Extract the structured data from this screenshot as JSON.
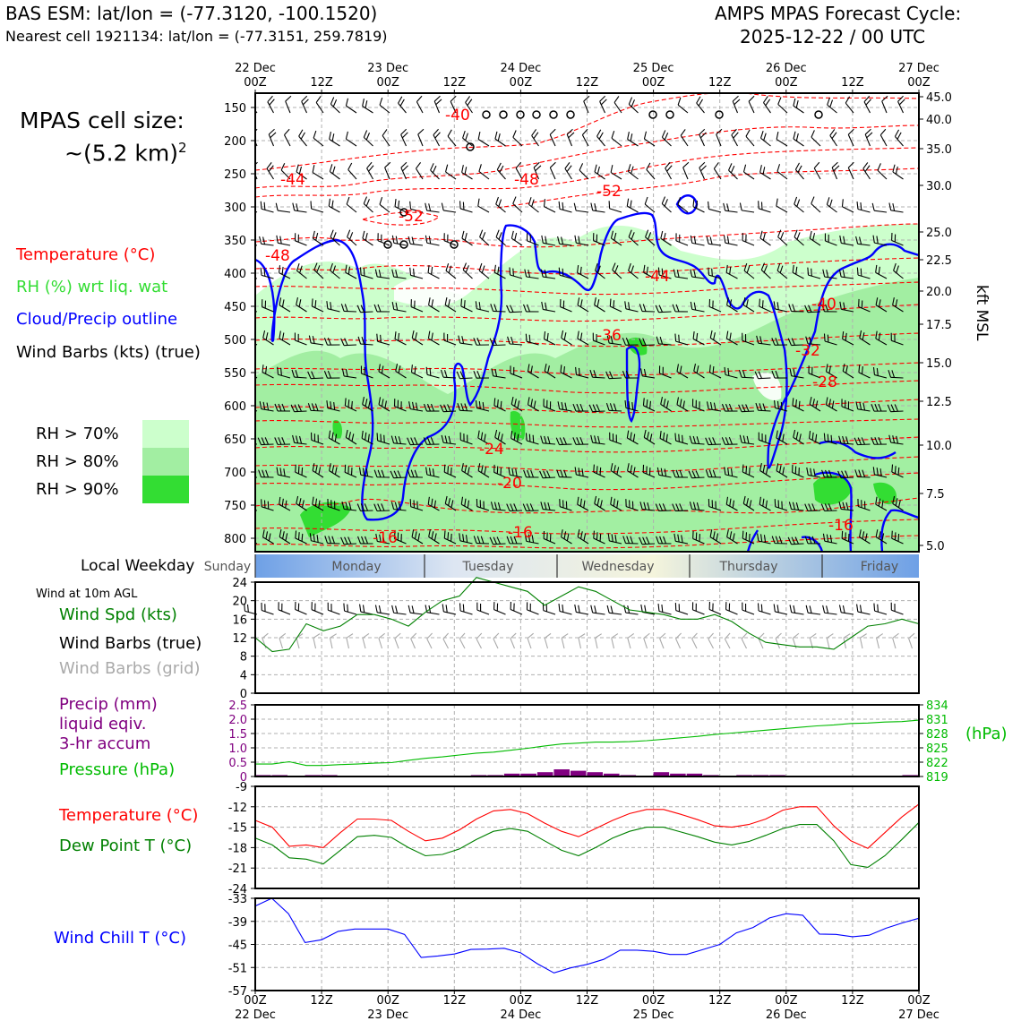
{
  "header": {
    "title_left": "BAS ESM: lat/lon = (-77.3120, -100.1520)",
    "subtitle_left": "Nearest cell 1921134: lat/lon = (-77.3151, 259.7819)",
    "title_right_line1": "AMPS MPAS Forecast Cycle:",
    "title_right_line2": "2025-12-22 / 00 UTC"
  },
  "side": {
    "cell_size_line1": "MPAS cell size:",
    "cell_size_line2": "~(5.2 km)",
    "cell_size_exp": "2",
    "legend_temperature": "Temperature (°C)",
    "legend_rh": "RH (%) wrt liq. wat",
    "legend_cloud": "Cloud/Precip outline",
    "legend_wind": "Wind Barbs (kts) (true)",
    "rh70": "RH > 70%",
    "rh80": "RH > 80%",
    "rh90": "RH > 90%",
    "weekday_label": "Local Weekday",
    "wind10m_label": "Wind at 10m AGL",
    "wind_spd_label": "Wind Spd (kts)",
    "wind_barbs_true_label": "Wind Barbs (true)",
    "wind_barbs_grid_label": "Wind Barbs (grid)",
    "precip_line1": "Precip (mm)",
    "precip_line2": "liquid eqiv.",
    "precip_line3": "3-hr accum",
    "pressure_label": "Pressure (hPa)",
    "hpa_unit": "(hPa)",
    "temp_label": "Temperature (°C)",
    "dew_label": "Dew Point T (°C)",
    "windchill_label": "Wind Chill T (°C)",
    "kft_label": "kft MSL"
  },
  "colors": {
    "temperature": "#ff0000",
    "rh_text": "#33dd33",
    "cloud": "#0000ff",
    "dew": "#008000",
    "precip": "#800080",
    "pressure": "#00bb00",
    "rh70": "#ccffcc",
    "rh80": "#a2eea2",
    "rh90": "#33dd33"
  },
  "chart_data": [
    {
      "type": "contour",
      "name": "cross-section",
      "time_ticks_top": [
        {
          "line1": "22 Dec",
          "line2": "00Z"
        },
        {
          "line1": "",
          "line2": "12Z"
        },
        {
          "line1": "23 Dec",
          "line2": "00Z"
        },
        {
          "line1": "",
          "line2": "12Z"
        },
        {
          "line1": "24 Dec",
          "line2": "00Z"
        },
        {
          "line1": "",
          "line2": "12Z"
        },
        {
          "line1": "25 Dec",
          "line2": "00Z"
        },
        {
          "line1": "",
          "line2": "12Z"
        },
        {
          "line1": "26 Dec",
          "line2": "00Z"
        },
        {
          "line1": "",
          "line2": "12Z"
        },
        {
          "line1": "27 Dec",
          "line2": "00Z"
        }
      ],
      "pressure_ticks": [
        "150",
        "200",
        "250",
        "300",
        "350",
        "400",
        "450",
        "500",
        "550",
        "600",
        "650",
        "700",
        "750",
        "800"
      ],
      "kft_ticks": [
        "45.0",
        "40.0",
        "35.0",
        "30.0",
        "25.0",
        "22.5",
        "20.0",
        "17.5",
        "15.0",
        "12.5",
        "10.0",
        "7.5",
        "5.0"
      ],
      "temperature_labels": [
        "-40",
        "-44",
        "-48",
        "-52",
        "-48",
        "-52",
        "-44",
        "-40",
        "-36",
        "-32",
        "-28",
        "-24",
        "-20",
        "-16",
        "-16",
        "-16"
      ],
      "weekdays": [
        "Sunday",
        "Monday",
        "Tuesday",
        "Wednesday",
        "Thursday",
        "Friday"
      ]
    },
    {
      "type": "line",
      "name": "wind-speed",
      "yticks": [
        "24",
        "20",
        "16",
        "12",
        "8",
        "4",
        "0"
      ],
      "ylim": [
        0,
        24
      ],
      "values": [
        12,
        9,
        9.5,
        15,
        13.5,
        14.5,
        17,
        17,
        16,
        14.5,
        17.5,
        20,
        21,
        25,
        24,
        23,
        22,
        19,
        21,
        23,
        22,
        20,
        18,
        17.5,
        17,
        16,
        16,
        17,
        15.5,
        13,
        11,
        10.5,
        10,
        10,
        9.5,
        12,
        14.5,
        15,
        16,
        15
      ]
    },
    {
      "type": "bar+line",
      "name": "precip-pressure",
      "precip_ticks": [
        "2.5",
        "2.0",
        "1.5",
        "1.0",
        "0.5",
        "0"
      ],
      "pressure_ticks": [
        "834",
        "831",
        "828",
        "825",
        "822",
        "819"
      ],
      "precip_ylim": [
        0,
        2.5
      ],
      "pressure_ylim": [
        819,
        834
      ],
      "precip": [
        0.05,
        0.05,
        0,
        0.05,
        0.05,
        0,
        0,
        0,
        0,
        0,
        0,
        0,
        0,
        0.05,
        0.05,
        0.1,
        0.1,
        0.15,
        0.25,
        0.2,
        0.15,
        0.1,
        0.05,
        0,
        0.15,
        0.1,
        0.1,
        0.05,
        0,
        0.05,
        0.05,
        0.05,
        0,
        0,
        0,
        0,
        0,
        0,
        0,
        0.05
      ],
      "pressure": [
        821.6,
        821.6,
        822.1,
        821.3,
        821.3,
        821.5,
        821.6,
        821.8,
        821.9,
        822.4,
        822.8,
        823.1,
        823.5,
        823.9,
        824.1,
        824.5,
        824.9,
        825.4,
        825.8,
        826,
        826.2,
        826.2,
        826.3,
        826.5,
        826.8,
        827.1,
        827.4,
        827.8,
        828.1,
        828.4,
        828.7,
        829,
        829.3,
        829.6,
        829.8,
        830.1,
        830.2,
        830.4,
        830.5,
        830.8
      ]
    },
    {
      "type": "line",
      "name": "temperature-dewpoint",
      "yticks": [
        "-9",
        "-12",
        "-15",
        "-18",
        "-21",
        "-24"
      ],
      "ylim": [
        -24,
        -9
      ],
      "temperature": [
        -14,
        -15,
        -17.8,
        -17.6,
        -18,
        -15.8,
        -13.8,
        -13.8,
        -14,
        -15.6,
        -17,
        -16.6,
        -15.4,
        -13.8,
        -12.6,
        -12.4,
        -13,
        -14.4,
        -15.6,
        -16.4,
        -15.2,
        -14,
        -13,
        -12.4,
        -12.4,
        -13.1,
        -13.9,
        -14.8,
        -15,
        -14.6,
        -13.8,
        -12.5,
        -12,
        -12,
        -14.8,
        -17,
        -18.1,
        -15.8,
        -13.5,
        -11.6
      ],
      "dew": [
        -16.6,
        -17.6,
        -19.5,
        -19.7,
        -20.4,
        -18.4,
        -16.4,
        -16.2,
        -16.5,
        -18,
        -19.2,
        -19,
        -18.2,
        -16.8,
        -15.6,
        -15.2,
        -15.6,
        -17,
        -18.4,
        -19.2,
        -18,
        -16.6,
        -15.6,
        -15,
        -15,
        -15.7,
        -16.4,
        -17.2,
        -17.6,
        -17.1,
        -16.2,
        -15.2,
        -14.6,
        -14.6,
        -17,
        -20.5,
        -20.9,
        -19.2,
        -16.8,
        -14.3
      ]
    },
    {
      "type": "line",
      "name": "wind-chill",
      "yticks": [
        "-33",
        "-39",
        "-45",
        "-51",
        "-57"
      ],
      "ylim": [
        -57,
        -33
      ],
      "values": [
        -35,
        -33,
        -37,
        -44.5,
        -43.8,
        -41.6,
        -41,
        -41,
        -41,
        -42.4,
        -48.4,
        -48,
        -47.5,
        -46.3,
        -46.2,
        -46,
        -47.2,
        -50,
        -52.4,
        -51.1,
        -50.2,
        -48.9,
        -46.5,
        -46.5,
        -46.8,
        -47.6,
        -47.6,
        -46.3,
        -45,
        -42,
        -40.6,
        -38.1,
        -37,
        -37.4,
        -42.3,
        -42.4,
        -43,
        -42.6,
        -40.8,
        -39.4,
        -38.2
      ]
    },
    {
      "type": "axis",
      "name": "bottom-time-axis",
      "ticks": [
        {
          "line1": "00Z",
          "line2": "22 Dec"
        },
        {
          "line1": "12Z",
          "line2": ""
        },
        {
          "line1": "00Z",
          "line2": "23 Dec"
        },
        {
          "line1": "12Z",
          "line2": ""
        },
        {
          "line1": "00Z",
          "line2": "24 Dec"
        },
        {
          "line1": "12Z",
          "line2": ""
        },
        {
          "line1": "00Z",
          "line2": "25 Dec"
        },
        {
          "line1": "12Z",
          "line2": ""
        },
        {
          "line1": "00Z",
          "line2": "26 Dec"
        },
        {
          "line1": "12Z",
          "line2": ""
        },
        {
          "line1": "00Z",
          "line2": "27 Dec"
        }
      ]
    }
  ]
}
